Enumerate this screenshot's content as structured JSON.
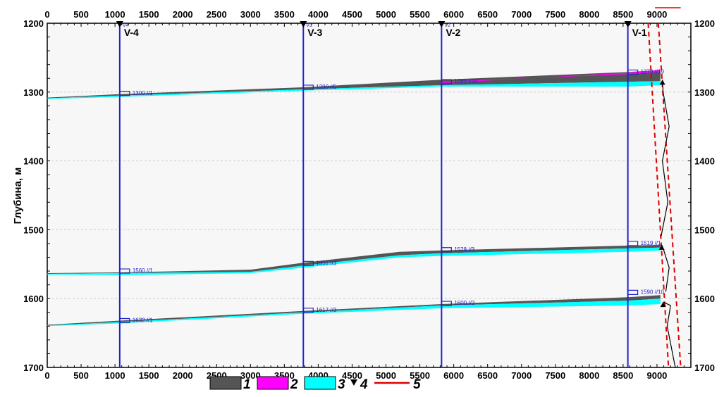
{
  "chart_data": {
    "type": "cross-section",
    "ylabel": "Глубина, м",
    "x_axis": {
      "range": [
        0,
        9500
      ],
      "ticks": [
        0,
        500,
        1000,
        1500,
        2000,
        2500,
        3000,
        3500,
        4000,
        4500,
        5000,
        5500,
        6000,
        6500,
        7000,
        7500,
        8000,
        8500,
        9000
      ]
    },
    "y_axis": {
      "range": [
        1200,
        1700
      ],
      "ticks": [
        1200,
        1300,
        1400,
        1500,
        1600,
        1700
      ],
      "inverted": true
    },
    "wells": [
      {
        "name": "V-4",
        "sub": "V4",
        "x": 1070
      },
      {
        "name": "V-3",
        "sub": "V3",
        "x": 3780
      },
      {
        "name": "V-2",
        "sub": "V2",
        "x": 5820
      },
      {
        "name": "V-1",
        "sub": "",
        "x": 8570
      }
    ],
    "markers": [
      {
        "label": "1300 //1",
        "x": 1070,
        "depth": 1302
      },
      {
        "label": "1290 //5",
        "x": 3780,
        "depth": 1293
      },
      {
        "label": "1280 //10",
        "x": 5820,
        "depth": 1285
      },
      {
        "label": "1270 //19",
        "x": 8570,
        "depth": 1271
      },
      {
        "label": "1560 //1",
        "x": 1070,
        "depth": 1560
      },
      {
        "label": "1551 //3",
        "x": 3780,
        "depth": 1549
      },
      {
        "label": "1528 //3",
        "x": 5820,
        "depth": 1529
      },
      {
        "label": "1519 //1",
        "x": 8570,
        "depth": 1520
      },
      {
        "label": "1632 //1",
        "x": 1070,
        "depth": 1632
      },
      {
        "label": "1617 //3",
        "x": 3780,
        "depth": 1617
      },
      {
        "label": "1600 //2",
        "x": 5820,
        "depth": 1607
      },
      {
        "label": "1590 //10",
        "x": 8570,
        "depth": 1591
      }
    ],
    "horizons": [
      {
        "name": "upper",
        "x": [
          0,
          1070,
          3780,
          5820,
          8570,
          9050
        ],
        "gray_top": [
          1308,
          1303,
          1293,
          1282,
          1271,
          1268
        ],
        "mag_top": [
          null,
          null,
          null,
          1287,
          1272,
          1268
        ],
        "cyan_top": [
          1309,
          1305,
          1296,
          1290,
          1285,
          1284
        ],
        "bottom": [
          1310,
          1307,
          1298,
          1292,
          1292,
          1290
        ]
      },
      {
        "name": "middle",
        "x": [
          0,
          1070,
          3000,
          3780,
          5200,
          5820,
          8570,
          9050
        ],
        "gray_top": [
          1563,
          1562,
          1558,
          1548,
          1532,
          1530,
          1523,
          1522
        ],
        "mag_top": [
          null,
          null,
          null,
          null,
          null,
          null,
          null,
          null
        ],
        "cyan_top": [
          1564,
          1563,
          1561,
          1552,
          1537,
          1534,
          1527,
          1526
        ],
        "bottom": [
          1565,
          1566,
          1563,
          1555,
          1540,
          1538,
          1532,
          1530
        ]
      },
      {
        "name": "lower",
        "x": [
          0,
          1070,
          3780,
          5820,
          8570,
          9050
        ],
        "gray_top": [
          1638,
          1632,
          1618,
          1608,
          1598,
          1595
        ],
        "mag_top": [
          null,
          null,
          null,
          null,
          null,
          null
        ],
        "cyan_top": [
          1639,
          1634,
          1620,
          1610,
          1603,
          1600
        ],
        "bottom": [
          1640,
          1636,
          1622,
          1614,
          1610,
          1608
        ]
      }
    ],
    "faults": [
      {
        "x": [
          8870,
          9170
        ]
      },
      {
        "x": [
          9020,
          9350
        ]
      }
    ],
    "legend": {
      "items": [
        {
          "label": "1",
          "kind": "swatch",
          "color": "#555555"
        },
        {
          "label": "2",
          "kind": "swatch",
          "color": "#ff00ff"
        },
        {
          "label": "3",
          "kind": "swatch",
          "color": "#00ffff"
        },
        {
          "label": "4",
          "kind": "triangle",
          "color": "#000000"
        },
        {
          "label": "5",
          "kind": "line",
          "color": "#dd0000"
        }
      ]
    },
    "colors": {
      "well": "#2222cc",
      "gray": "#555555",
      "magenta": "#ff00ff",
      "cyan": "#00ffff",
      "fault": "#dd0000",
      "grid": "#cccccc"
    }
  }
}
